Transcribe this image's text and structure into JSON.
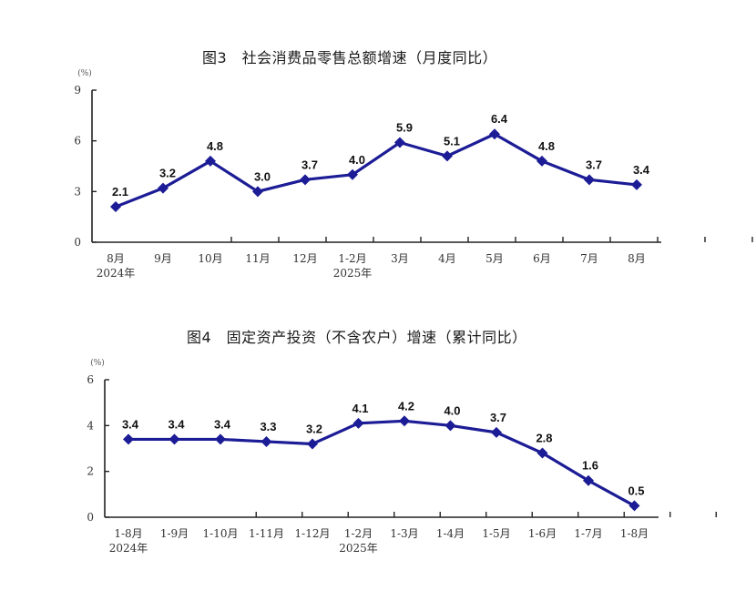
{
  "chart_data": [
    {
      "type": "line",
      "title": "图3　社会消费品零售总额增速（月度同比）",
      "ylabel": "(%)",
      "xlabel": "",
      "categories": [
        "8月",
        "9月",
        "10月",
        "11月",
        "12月",
        "1-2月",
        "3月",
        "4月",
        "5月",
        "6月",
        "7月",
        "8月"
      ],
      "category_sublabels": {
        "0": "2024年",
        "5": "2025年"
      },
      "series": [
        {
          "name": "社会消费品零售总额增速",
          "values": [
            2.1,
            3.2,
            4.8,
            3.0,
            3.7,
            4.0,
            5.9,
            5.1,
            6.4,
            4.8,
            3.7,
            3.4
          ]
        }
      ],
      "data_labels": [
        "2.1",
        "3.2",
        "4.8",
        "3.0",
        "3.7",
        "4.0",
        "5.9",
        "5.1",
        "6.4",
        "4.8",
        "3.7",
        "3.4"
      ],
      "yticks": [
        "0",
        "3",
        "6",
        "9"
      ],
      "ylim": [
        0,
        9
      ],
      "grid": false,
      "legend": "none",
      "color": "#1c1c96"
    },
    {
      "type": "line",
      "title": "图4　固定资产投资（不含农户）增速（累计同比）",
      "ylabel": "(%)",
      "xlabel": "",
      "categories": [
        "1-8月",
        "1-9月",
        "1-10月",
        "1-11月",
        "1-12月",
        "1-2月",
        "1-3月",
        "1-4月",
        "1-5月",
        "1-6月",
        "1-7月",
        "1-8月"
      ],
      "category_sublabels": {
        "0": "2024年",
        "5": "2025年"
      },
      "series": [
        {
          "name": "固定资产投资（不含农户）增速",
          "values": [
            3.4,
            3.4,
            3.4,
            3.3,
            3.2,
            4.1,
            4.2,
            4.0,
            3.7,
            2.8,
            1.6,
            0.5
          ]
        }
      ],
      "data_labels": [
        "3.4",
        "3.4",
        "3.4",
        "3.3",
        "3.2",
        "4.1",
        "4.2",
        "4.0",
        "3.7",
        "2.8",
        "1.6",
        "0.5"
      ],
      "yticks": [
        "0",
        "2",
        "4",
        "6"
      ],
      "ylim": [
        0,
        6
      ],
      "grid": false,
      "legend": "none",
      "color": "#1c1c96"
    }
  ]
}
